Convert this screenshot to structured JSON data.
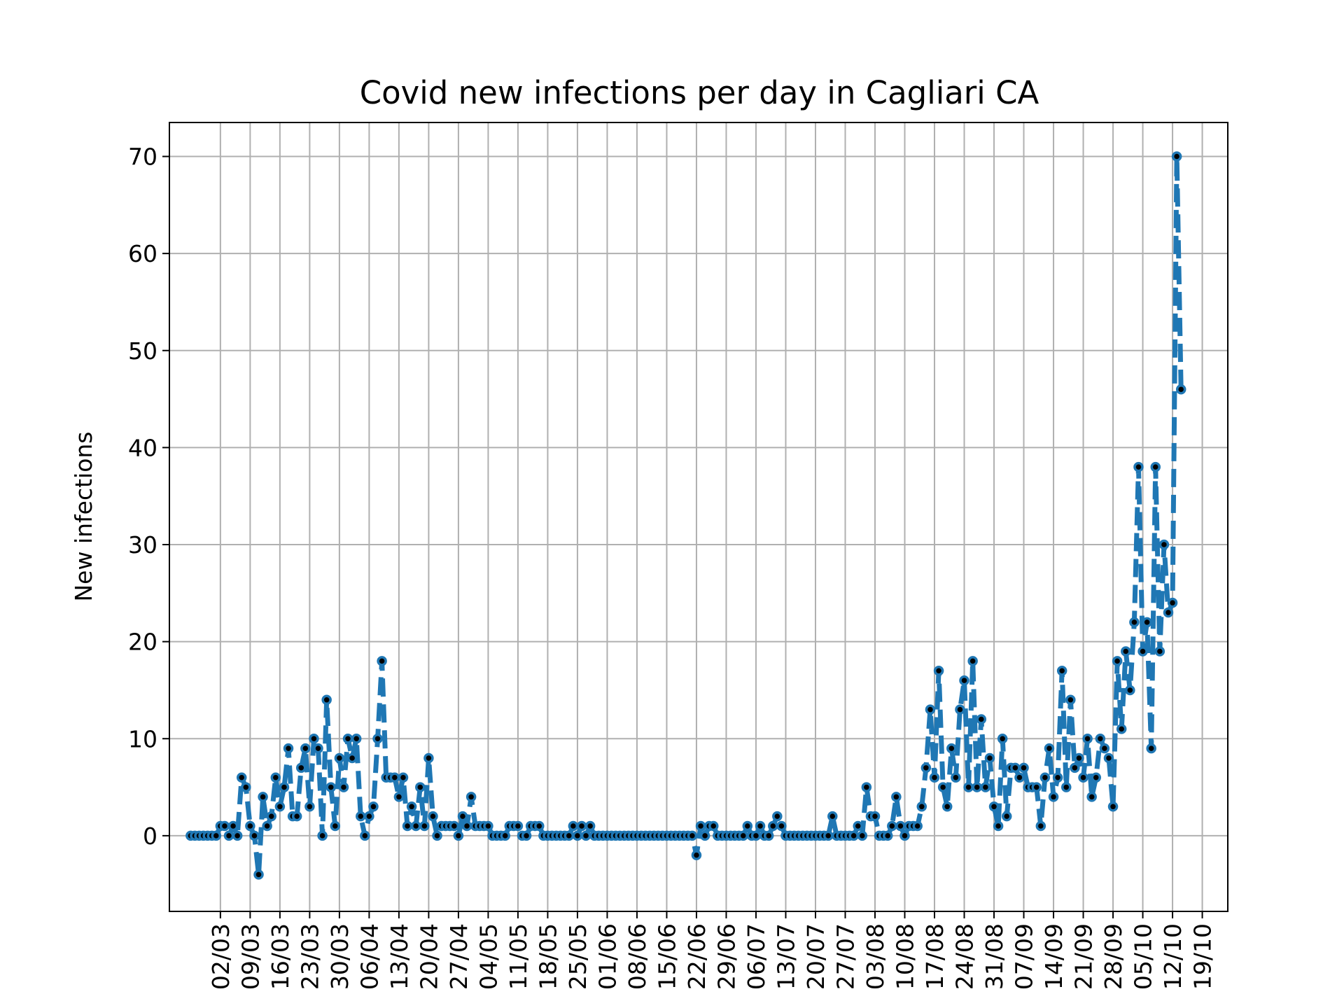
{
  "chart_data": {
    "type": "line",
    "title": "Covid new infections per day in Cagliari CA",
    "xlabel": "",
    "ylabel": "New infections",
    "ylim": [
      -7.8,
      73.5
    ],
    "yticks": [
      0,
      10,
      20,
      30,
      40,
      50,
      60,
      70
    ],
    "grid": true,
    "x_tick_labels": [
      "02/03",
      "09/03",
      "16/03",
      "23/03",
      "30/03",
      "06/04",
      "13/04",
      "20/04",
      "27/04",
      "04/05",
      "11/05",
      "18/05",
      "25/05",
      "01/06",
      "08/06",
      "15/06",
      "22/06",
      "29/06",
      "06/07",
      "13/07",
      "20/07",
      "27/07",
      "03/08",
      "10/08",
      "17/08",
      "24/08",
      "31/08",
      "07/09",
      "14/09",
      "21/09",
      "28/09",
      "05/10",
      "12/10",
      "19/10"
    ],
    "x_dates": [
      "2020-02-24",
      "2020-02-25",
      "2020-02-26",
      "2020-02-27",
      "2020-02-28",
      "2020-02-29",
      "2020-03-01",
      "2020-03-02",
      "2020-03-03",
      "2020-03-04",
      "2020-03-05",
      "2020-03-06",
      "2020-03-07",
      "2020-03-08",
      "2020-03-09",
      "2020-03-10",
      "2020-03-11",
      "2020-03-12",
      "2020-03-13",
      "2020-03-14",
      "2020-03-15",
      "2020-03-16",
      "2020-03-17",
      "2020-03-18",
      "2020-03-19",
      "2020-03-20",
      "2020-03-21",
      "2020-03-22",
      "2020-03-23",
      "2020-03-24",
      "2020-03-25",
      "2020-03-26",
      "2020-03-27",
      "2020-03-28",
      "2020-03-29",
      "2020-03-30",
      "2020-03-31",
      "2020-04-01",
      "2020-04-02",
      "2020-04-03",
      "2020-04-04",
      "2020-04-05",
      "2020-04-06",
      "2020-04-07",
      "2020-04-08",
      "2020-04-09",
      "2020-04-10",
      "2020-04-11",
      "2020-04-12",
      "2020-04-13",
      "2020-04-14",
      "2020-04-15",
      "2020-04-16",
      "2020-04-17",
      "2020-04-18",
      "2020-04-19",
      "2020-04-20",
      "2020-04-21",
      "2020-04-22",
      "2020-04-23",
      "2020-04-24",
      "2020-04-25",
      "2020-04-26",
      "2020-04-27",
      "2020-04-28",
      "2020-04-29",
      "2020-04-30",
      "2020-05-01",
      "2020-05-02",
      "2020-05-03",
      "2020-05-04",
      "2020-05-05",
      "2020-05-06",
      "2020-05-07",
      "2020-05-08",
      "2020-05-09",
      "2020-05-10",
      "2020-05-11",
      "2020-05-12",
      "2020-05-13",
      "2020-05-14",
      "2020-05-15",
      "2020-05-16",
      "2020-05-17",
      "2020-05-18",
      "2020-05-19",
      "2020-05-20",
      "2020-05-21",
      "2020-05-22",
      "2020-05-23",
      "2020-05-24",
      "2020-05-25",
      "2020-05-26",
      "2020-05-27",
      "2020-05-28",
      "2020-05-29",
      "2020-05-30",
      "2020-05-31",
      "2020-06-01",
      "2020-06-02",
      "2020-06-03",
      "2020-06-04",
      "2020-06-05",
      "2020-06-06",
      "2020-06-07",
      "2020-06-08",
      "2020-06-09",
      "2020-06-10",
      "2020-06-11",
      "2020-06-12",
      "2020-06-13",
      "2020-06-14",
      "2020-06-15",
      "2020-06-16",
      "2020-06-17",
      "2020-06-18",
      "2020-06-19",
      "2020-06-20",
      "2020-06-21",
      "2020-06-22",
      "2020-06-23",
      "2020-06-24",
      "2020-06-25",
      "2020-06-26",
      "2020-06-27",
      "2020-06-28",
      "2020-06-29",
      "2020-06-30",
      "2020-07-01",
      "2020-07-02",
      "2020-07-03",
      "2020-07-04",
      "2020-07-05",
      "2020-07-06",
      "2020-07-07",
      "2020-07-08",
      "2020-07-09",
      "2020-07-10",
      "2020-07-11",
      "2020-07-12",
      "2020-07-13",
      "2020-07-14",
      "2020-07-15",
      "2020-07-16",
      "2020-07-17",
      "2020-07-18",
      "2020-07-19",
      "2020-07-20",
      "2020-07-21",
      "2020-07-22",
      "2020-07-23",
      "2020-07-24",
      "2020-07-25",
      "2020-07-26",
      "2020-07-27",
      "2020-07-28",
      "2020-07-29",
      "2020-07-30",
      "2020-07-31",
      "2020-08-01",
      "2020-08-02",
      "2020-08-03",
      "2020-08-04",
      "2020-08-05",
      "2020-08-06",
      "2020-08-07",
      "2020-08-08",
      "2020-08-09",
      "2020-08-10",
      "2020-08-11",
      "2020-08-12",
      "2020-08-13",
      "2020-08-14",
      "2020-08-15",
      "2020-08-16",
      "2020-08-17",
      "2020-08-18",
      "2020-08-19",
      "2020-08-20",
      "2020-08-21",
      "2020-08-22",
      "2020-08-23",
      "2020-08-24",
      "2020-08-25",
      "2020-08-26",
      "2020-08-27",
      "2020-08-28",
      "2020-08-29",
      "2020-08-30",
      "2020-08-31",
      "2020-09-01",
      "2020-09-02",
      "2020-09-03",
      "2020-09-04",
      "2020-09-05",
      "2020-09-06",
      "2020-09-07",
      "2020-09-08",
      "2020-09-09",
      "2020-09-10",
      "2020-09-11",
      "2020-09-12",
      "2020-09-13",
      "2020-09-14",
      "2020-09-15",
      "2020-09-16",
      "2020-09-17",
      "2020-09-18",
      "2020-09-19",
      "2020-09-20",
      "2020-09-21",
      "2020-09-22",
      "2020-09-23",
      "2020-09-24",
      "2020-09-25",
      "2020-09-26",
      "2020-09-27",
      "2020-09-28",
      "2020-09-29",
      "2020-09-30",
      "2020-10-01",
      "2020-10-02",
      "2020-10-03",
      "2020-10-04",
      "2020-10-05",
      "2020-10-06",
      "2020-10-07",
      "2020-10-08",
      "2020-10-09",
      "2020-10-10",
      "2020-10-11",
      "2020-10-12",
      "2020-10-13",
      "2020-10-14",
      "2020-10-15",
      "2020-10-16",
      "2020-10-17",
      "2020-10-18",
      "2020-10-19",
      "2020-10-20"
    ],
    "series": [
      {
        "color": "#1f77b4",
        "values": [
          0,
          0,
          0,
          0,
          0,
          0,
          0,
          1,
          1,
          0,
          1,
          0,
          6,
          5,
          1,
          0,
          -4,
          4,
          1,
          2,
          6,
          3,
          5,
          9,
          2,
          2,
          7,
          9,
          3,
          10,
          9,
          0,
          14,
          5,
          1,
          8,
          5,
          10,
          8,
          10,
          2,
          0,
          2,
          3,
          10,
          18,
          6,
          6,
          6,
          4,
          6,
          1,
          3,
          1,
          5,
          1,
          8,
          2,
          0,
          1,
          1,
          1,
          1,
          0,
          2,
          1,
          4,
          1,
          1,
          1,
          1,
          0,
          0,
          0,
          0,
          1,
          1,
          1,
          0,
          0,
          1,
          1,
          1,
          0,
          0,
          0,
          0,
          0,
          0,
          0,
          1,
          0,
          1,
          0,
          1,
          0,
          0,
          0,
          0,
          0,
          0,
          0,
          0,
          0,
          0,
          0,
          0,
          0,
          0,
          0,
          0,
          0,
          0,
          0,
          0,
          0,
          0,
          0,
          0,
          -2,
          1,
          0,
          1,
          1,
          0,
          0,
          0,
          0,
          0,
          0,
          0,
          1,
          0,
          0,
          1,
          0,
          0,
          1,
          2,
          1,
          0,
          0,
          0,
          0,
          0,
          0,
          0,
          0,
          0,
          0,
          0,
          2,
          0,
          0,
          0,
          0,
          0,
          1,
          0,
          5,
          2,
          2,
          0,
          0,
          0,
          1,
          4,
          1,
          0,
          1,
          1,
          1,
          3,
          7,
          13,
          6,
          17,
          5,
          3,
          9,
          6,
          13,
          16,
          5,
          18,
          5,
          12,
          5,
          8,
          3,
          1,
          10,
          2,
          7,
          7,
          6,
          7,
          5,
          5,
          5,
          1,
          6,
          9,
          4,
          6,
          17,
          5,
          14,
          7,
          8,
          6,
          10,
          4,
          6,
          10,
          9,
          8,
          3,
          18,
          11,
          19,
          15,
          22,
          38,
          19,
          22,
          9,
          38,
          19,
          30,
          23,
          24,
          70,
          46
        ]
      }
    ]
  }
}
